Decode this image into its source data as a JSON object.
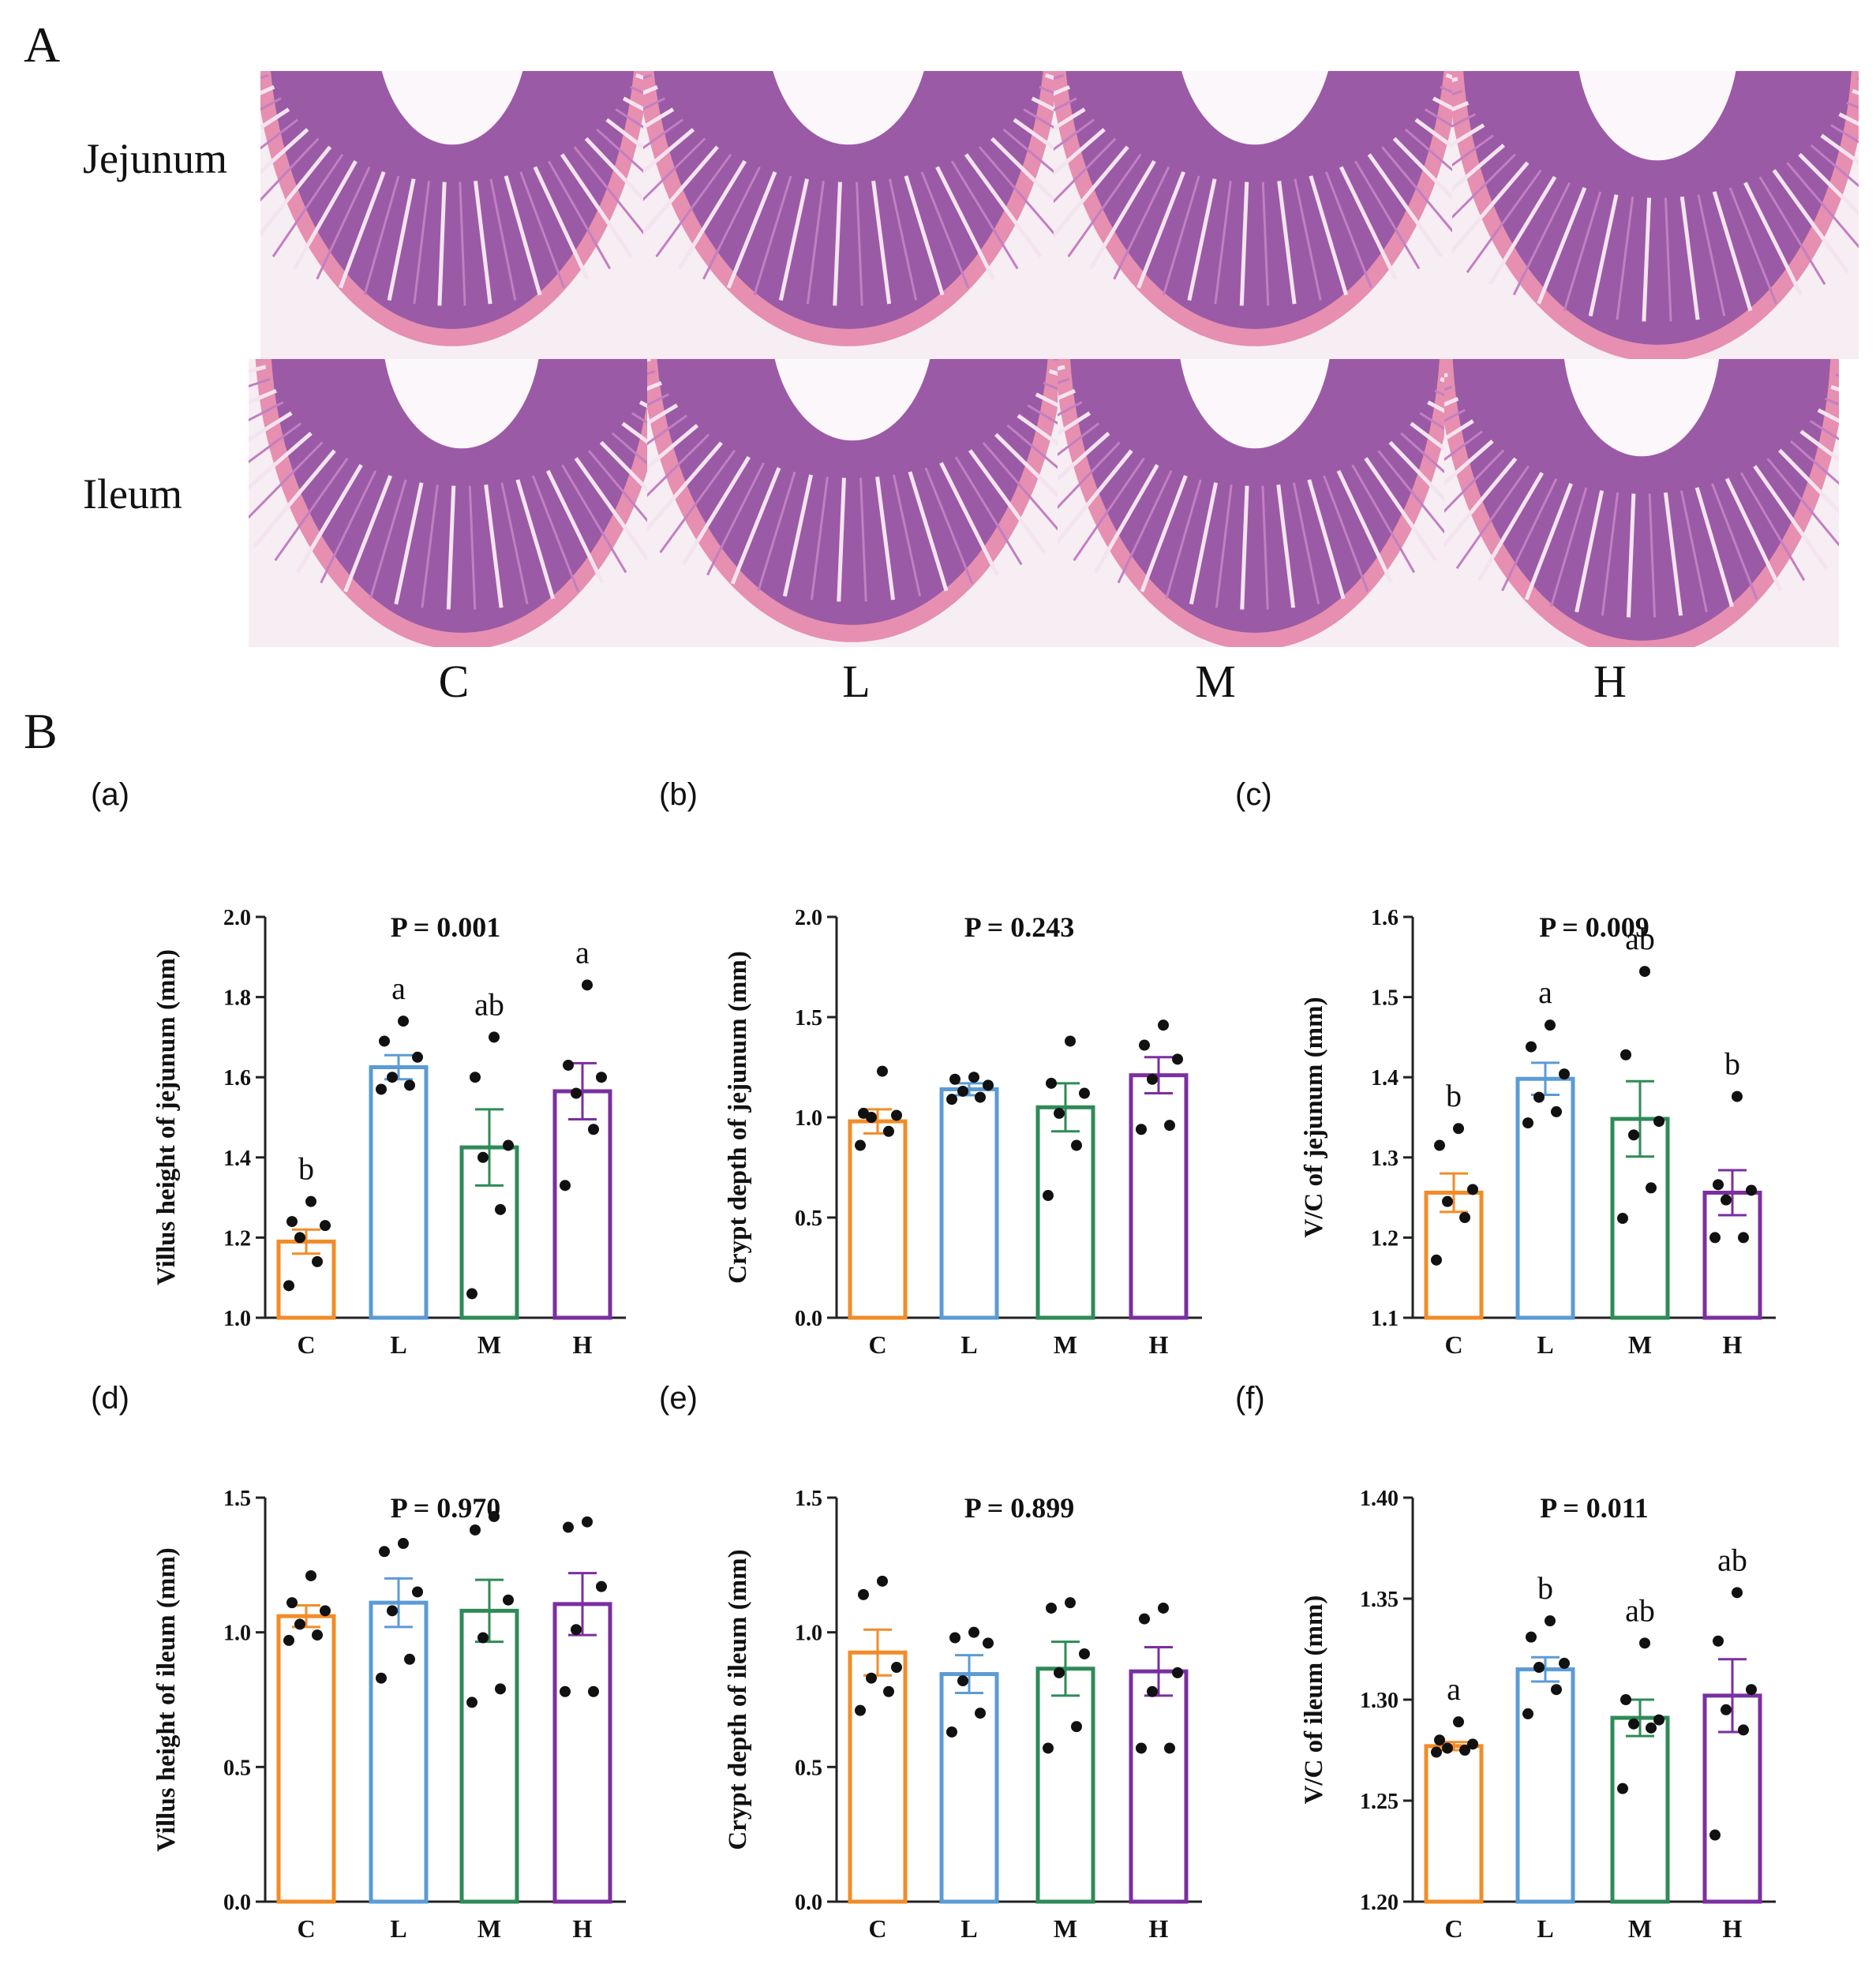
{
  "panelA": {
    "letter": "A",
    "rows": [
      "Jejunum",
      "Ileum"
    ],
    "columns": [
      "C",
      "L",
      "M",
      "H"
    ]
  },
  "panelB": {
    "letter": "B"
  },
  "colors": {
    "C": "#F28C28",
    "L": "#5B9BD5",
    "M": "#2E8B57",
    "H": "#7B2FA0"
  },
  "chart_data": [
    {
      "id": "a",
      "panel": "(a)",
      "type": "bar",
      "title": "P = 0.001",
      "ylabel": "Villus height of jejunum (mm)",
      "categories": [
        "C",
        "L",
        "M",
        "H"
      ],
      "values": [
        1.19,
        1.625,
        1.425,
        1.565
      ],
      "sem": [
        0.03,
        0.03,
        0.095,
        0.07
      ],
      "points": [
        [
          1.08,
          1.14,
          1.2,
          1.23,
          1.24,
          1.29
        ],
        [
          1.57,
          1.58,
          1.6,
          1.65,
          1.69,
          1.74
        ],
        [
          1.06,
          1.27,
          1.4,
          1.43,
          1.6,
          1.7
        ],
        [
          1.33,
          1.47,
          1.56,
          1.6,
          1.63,
          1.83
        ]
      ],
      "letters": [
        "b",
        "a",
        "ab",
        "a"
      ],
      "ylim": [
        1.0,
        2.0
      ],
      "yticks": [
        "1.0",
        "1.2",
        "1.4",
        "1.6",
        "1.8",
        "2.0"
      ]
    },
    {
      "id": "b",
      "panel": "(b)",
      "type": "bar",
      "title": "P = 0.243",
      "ylabel": "Crypt depth of jejunum (mm)",
      "categories": [
        "C",
        "L",
        "M",
        "H"
      ],
      "values": [
        0.98,
        1.14,
        1.05,
        1.21
      ],
      "sem": [
        0.06,
        0.03,
        0.12,
        0.09
      ],
      "points": [
        [
          0.86,
          0.93,
          1.0,
          1.01,
          1.02,
          1.23
        ],
        [
          1.09,
          1.1,
          1.13,
          1.16,
          1.19,
          1.2
        ],
        [
          0.61,
          0.86,
          1.02,
          1.12,
          1.17,
          1.38
        ],
        [
          0.94,
          0.96,
          1.19,
          1.29,
          1.36,
          1.46
        ]
      ],
      "letters": [
        "",
        "",
        "",
        ""
      ],
      "ylim": [
        0.0,
        2.0
      ],
      "yticks": [
        "0.0",
        "0.5",
        "1.0",
        "1.5",
        "2.0"
      ]
    },
    {
      "id": "c",
      "panel": "(c)",
      "type": "bar",
      "title": "P = 0.009",
      "ylabel": "V/C of jejunum (mm)",
      "categories": [
        "C",
        "L",
        "M",
        "H"
      ],
      "values": [
        1.256,
        1.398,
        1.348,
        1.256
      ],
      "sem": [
        0.024,
        0.02,
        0.047,
        0.028
      ],
      "points": [
        [
          1.172,
          1.225,
          1.245,
          1.26,
          1.315,
          1.336
        ],
        [
          1.343,
          1.357,
          1.375,
          1.404,
          1.438,
          1.465
        ],
        [
          1.224,
          1.262,
          1.328,
          1.345,
          1.428,
          1.532
        ],
        [
          1.2,
          1.2,
          1.247,
          1.259,
          1.266,
          1.376
        ]
      ],
      "letters": [
        "b",
        "a",
        "ab",
        "b"
      ],
      "ylim": [
        1.1,
        1.6
      ],
      "yticks": [
        "1.1",
        "1.2",
        "1.3",
        "1.4",
        "1.5",
        "1.6"
      ]
    },
    {
      "id": "d",
      "panel": "(d)",
      "type": "bar",
      "title": "P = 0.970",
      "ylabel": "Villus height of ileum (mm)",
      "categories": [
        "C",
        "L",
        "M",
        "H"
      ],
      "values": [
        1.06,
        1.11,
        1.08,
        1.105
      ],
      "sem": [
        0.04,
        0.09,
        0.115,
        0.115
      ],
      "points": [
        [
          0.97,
          0.99,
          1.03,
          1.08,
          1.11,
          1.21
        ],
        [
          0.83,
          0.9,
          1.08,
          1.15,
          1.3,
          1.33
        ],
        [
          0.74,
          0.79,
          0.98,
          1.12,
          1.38,
          1.43
        ],
        [
          0.78,
          0.78,
          1.01,
          1.17,
          1.39,
          1.41
        ]
      ],
      "letters": [
        "",
        "",
        "",
        ""
      ],
      "ylim": [
        0.0,
        1.5
      ],
      "yticks": [
        "0.0",
        "0.5",
        "1.0",
        "1.5"
      ]
    },
    {
      "id": "e",
      "panel": "(e)",
      "type": "bar",
      "title": "P = 0.899",
      "ylabel": "Crypt depth of ileum (mm)",
      "categories": [
        "C",
        "L",
        "M",
        "H"
      ],
      "values": [
        0.925,
        0.845,
        0.865,
        0.855
      ],
      "sem": [
        0.085,
        0.07,
        0.1,
        0.09
      ],
      "points": [
        [
          0.71,
          0.78,
          0.83,
          0.87,
          1.14,
          1.19
        ],
        [
          0.63,
          0.7,
          0.82,
          0.96,
          0.98,
          1.0
        ],
        [
          0.57,
          0.65,
          0.85,
          0.92,
          1.09,
          1.11
        ],
        [
          0.57,
          0.57,
          0.78,
          0.85,
          1.05,
          1.09
        ]
      ],
      "letters": [
        "",
        "",
        "",
        ""
      ],
      "ylim": [
        0.0,
        1.5
      ],
      "yticks": [
        "0.0",
        "0.5",
        "1.0",
        "1.5"
      ]
    },
    {
      "id": "f",
      "panel": "(f)",
      "type": "bar",
      "title": "P = 0.011",
      "ylabel": "V/C of ileum (mm)",
      "categories": [
        "C",
        "L",
        "M",
        "H"
      ],
      "values": [
        1.277,
        1.315,
        1.291,
        1.302
      ],
      "sem": [
        0.002,
        0.006,
        0.009,
        0.018
      ],
      "points": [
        [
          1.274,
          1.275,
          1.276,
          1.278,
          1.28,
          1.289
        ],
        [
          1.293,
          1.305,
          1.316,
          1.318,
          1.331,
          1.339
        ],
        [
          1.256,
          1.286,
          1.288,
          1.29,
          1.3,
          1.328
        ],
        [
          1.233,
          1.285,
          1.295,
          1.305,
          1.329,
          1.353
        ]
      ],
      "letters": [
        "a",
        "b",
        "ab",
        "ab"
      ],
      "ylim": [
        1.2,
        1.4
      ],
      "yticks": [
        "1.20",
        "1.25",
        "1.30",
        "1.35",
        "1.40"
      ]
    }
  ]
}
